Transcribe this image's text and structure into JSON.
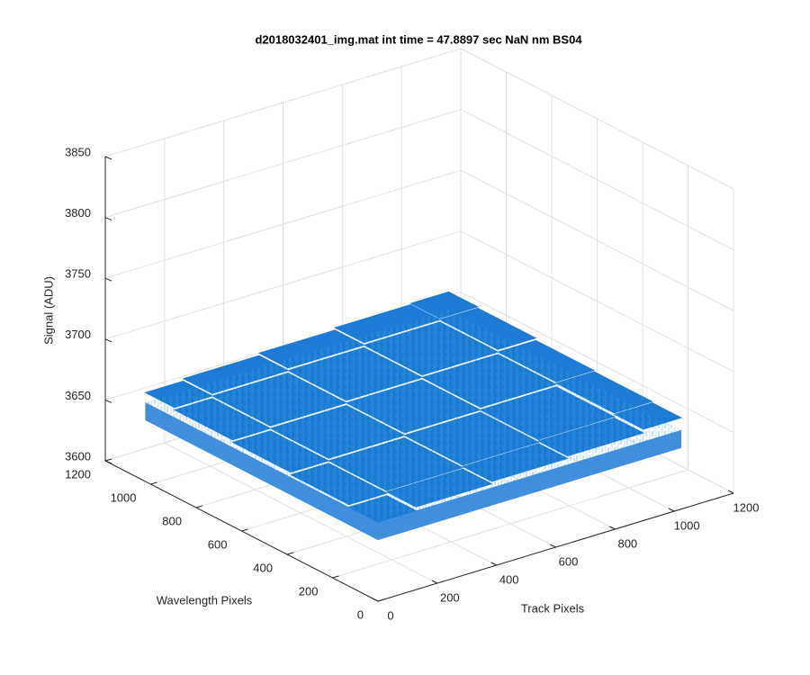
{
  "chart_data": {
    "type": "surface",
    "title": "d2018032401_img.mat int time = 47.8897 sec  NaN nm BS04",
    "xlabel": "Track Pixels",
    "ylabel": "Wavelength Pixels",
    "zlabel": "Signal (ADU)",
    "x": [
      0,
      256,
      512,
      768,
      1024
    ],
    "y": [
      0,
      256,
      512,
      768,
      1024
    ],
    "z": [
      [
        3665,
        3668,
        3670,
        3672,
        3675
      ],
      [
        3667,
        3669,
        3671,
        3673,
        3676
      ],
      [
        3669,
        3671,
        3673,
        3675,
        3677
      ],
      [
        3671,
        3673,
        3675,
        3677,
        3679
      ],
      [
        3673,
        3675,
        3677,
        3679,
        3680
      ]
    ],
    "color": "#1f7ad6",
    "xlim": [
      0,
      1200
    ],
    "ylim": [
      0,
      1200
    ],
    "zlim": [
      3600,
      3850
    ],
    "xticks": [
      0,
      200,
      400,
      600,
      800,
      1000,
      1200
    ],
    "yticks": [
      0,
      200,
      400,
      600,
      800,
      1000,
      1200
    ],
    "zticks": [
      3600,
      3650,
      3700,
      3750,
      3800,
      3850
    ],
    "grid": true
  }
}
